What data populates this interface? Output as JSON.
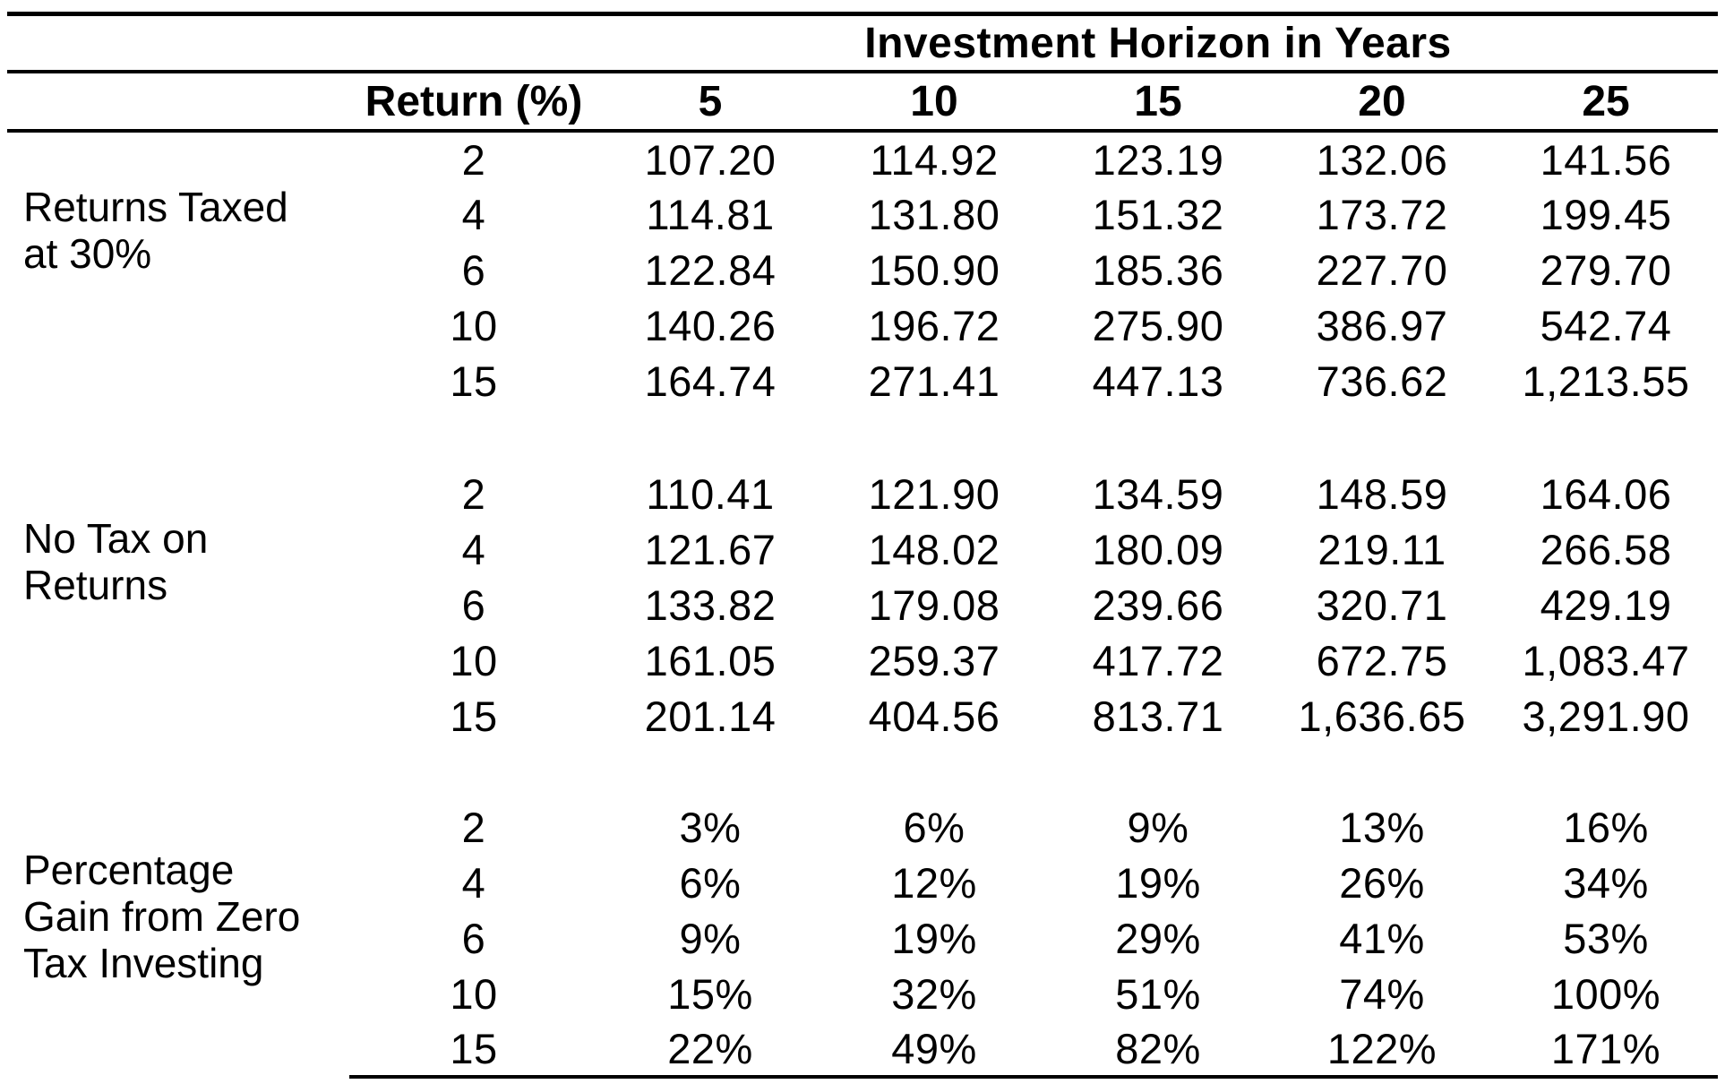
{
  "table": {
    "group_header": "Investment Horizon in Years",
    "return_header": "Return (%)",
    "year_headers": [
      "5",
      "10",
      "15",
      "20",
      "25"
    ],
    "sections": [
      {
        "label_lines": [
          "Returns Taxed",
          "at 30%"
        ],
        "rows": [
          {
            "return": "2",
            "values": [
              "107.20",
              "114.92",
              "123.19",
              "132.06",
              "141.56"
            ]
          },
          {
            "return": "4",
            "values": [
              "114.81",
              "131.80",
              "151.32",
              "173.72",
              "199.45"
            ]
          },
          {
            "return": "6",
            "values": [
              "122.84",
              "150.90",
              "185.36",
              "227.70",
              "279.70"
            ]
          },
          {
            "return": "10",
            "values": [
              "140.26",
              "196.72",
              "275.90",
              "386.97",
              "542.74"
            ]
          },
          {
            "return": "15",
            "values": [
              "164.74",
              "271.41",
              "447.13",
              "736.62",
              "1,213.55"
            ]
          }
        ]
      },
      {
        "label_lines": [
          "No Tax on",
          "Returns"
        ],
        "rows": [
          {
            "return": "2",
            "values": [
              "110.41",
              "121.90",
              "134.59",
              "148.59",
              "164.06"
            ]
          },
          {
            "return": "4",
            "values": [
              "121.67",
              "148.02",
              "180.09",
              "219.11",
              "266.58"
            ]
          },
          {
            "return": "6",
            "values": [
              "133.82",
              "179.08",
              "239.66",
              "320.71",
              "429.19"
            ]
          },
          {
            "return": "10",
            "values": [
              "161.05",
              "259.37",
              "417.72",
              "672.75",
              "1,083.47"
            ]
          },
          {
            "return": "15",
            "values": [
              "201.14",
              "404.56",
              "813.71",
              "1,636.65",
              "3,291.90"
            ]
          }
        ]
      },
      {
        "label_lines": [
          "Percentage",
          "Gain from Zero",
          "Tax Investing"
        ],
        "rows": [
          {
            "return": "2",
            "values": [
              "3%",
              "6%",
              "9%",
              "13%",
              "16%"
            ]
          },
          {
            "return": "4",
            "values": [
              "6%",
              "12%",
              "19%",
              "26%",
              "34%"
            ]
          },
          {
            "return": "6",
            "values": [
              "9%",
              "19%",
              "29%",
              "41%",
              "53%"
            ]
          },
          {
            "return": "10",
            "values": [
              "15%",
              "32%",
              "51%",
              "74%",
              "100%"
            ]
          },
          {
            "return": "15",
            "values": [
              "22%",
              "49%",
              "82%",
              "122%",
              "171%"
            ]
          }
        ]
      }
    ]
  }
}
